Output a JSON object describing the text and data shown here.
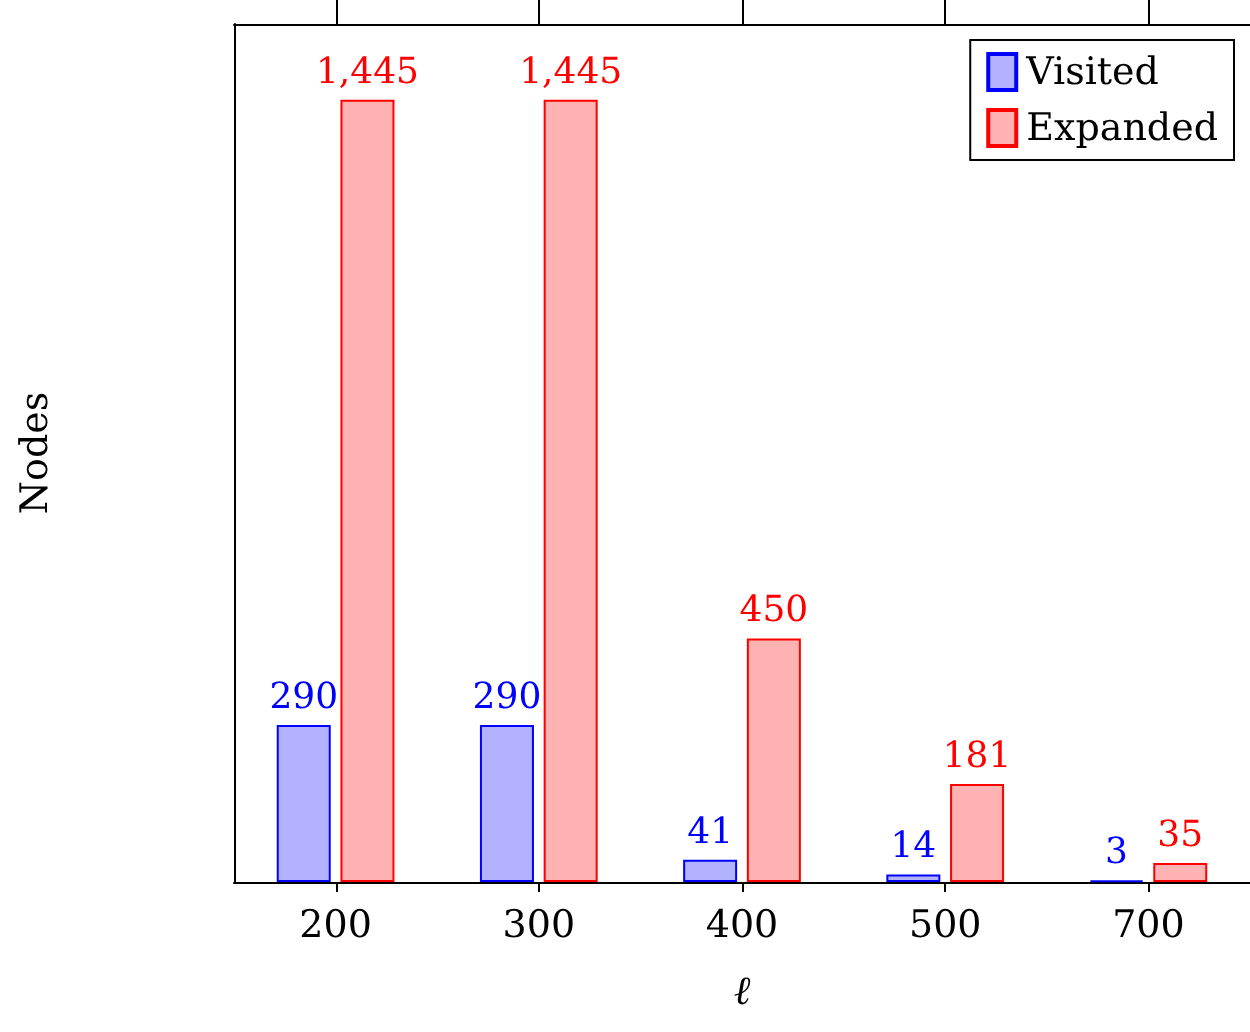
{
  "chart_data": {
    "type": "bar",
    "xlabel": "ℓ",
    "ylabel": "Nodes",
    "categories": [
      "200",
      "300",
      "400",
      "500",
      "700"
    ],
    "series": [
      {
        "name": "Visited",
        "color": "#0000ff",
        "values": [
          290,
          290,
          41,
          14,
          3
        ],
        "value_labels": [
          "290",
          "290",
          "41",
          "14",
          "3"
        ]
      },
      {
        "name": "Expanded",
        "color": "#ff0000",
        "values": [
          1445,
          1445,
          450,
          181,
          35
        ],
        "value_labels": [
          "1,445",
          "1,445",
          "450",
          "181",
          "35"
        ]
      }
    ],
    "legend": "top right",
    "tick_labels": "x",
    "grid": false
  }
}
